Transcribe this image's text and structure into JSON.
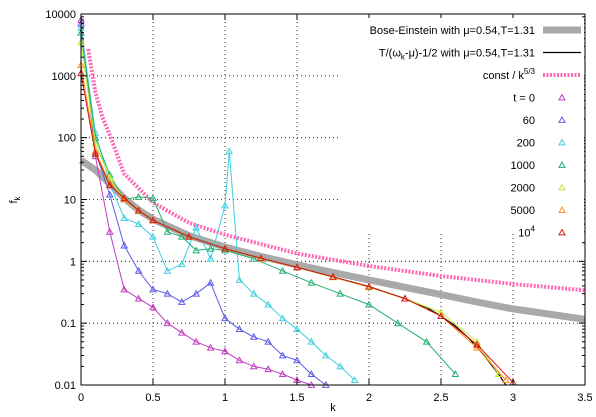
{
  "chart_data": {
    "type": "scatter",
    "title": "",
    "xlabel": "k",
    "ylabel": "f",
    "ylabel_sub": "k",
    "xlim": [
      0,
      3.5
    ],
    "ylim": [
      0.01,
      10000
    ],
    "yscale": "log",
    "grid": true,
    "legend_position": "top-right",
    "x_ticks": [
      "0",
      "0.5",
      "1",
      "1.5",
      "2",
      "2.5",
      "3",
      "3.5"
    ],
    "y_ticks": [
      "0.01",
      "0.1",
      "1",
      "10",
      "100",
      "1000",
      "10000"
    ],
    "reference_curves": [
      {
        "name": "Bose-Einstein with μ=0.54,T=1.31",
        "color": "#a9a9a9",
        "x": [
          0.0,
          0.1,
          0.2,
          0.3,
          0.4,
          0.5,
          0.75,
          1.0,
          1.25,
          1.5,
          1.75,
          2.0,
          2.25,
          2.5,
          2.75,
          3.0,
          3.25,
          3.5
        ],
        "y": [
          43,
          30,
          18,
          10.5,
          6.8,
          4.8,
          2.6,
          1.7,
          1.2,
          0.88,
          0.66,
          0.5,
          0.38,
          0.29,
          0.22,
          0.17,
          0.14,
          0.115
        ]
      },
      {
        "name": "T/(ω_k-μ)-1/2 with μ=0.54,T=1.31",
        "color": "#000000",
        "x": [
          0.3,
          0.4,
          0.5,
          0.75,
          1.0,
          1.25,
          1.5,
          1.75,
          2.0,
          2.25,
          2.4,
          2.5,
          2.6,
          2.7,
          2.8,
          2.9,
          2.95
        ],
        "y": [
          10.5,
          6.6,
          4.6,
          2.5,
          1.6,
          1.12,
          0.8,
          0.56,
          0.39,
          0.25,
          0.18,
          0.13,
          0.09,
          0.055,
          0.03,
          0.015,
          0.01
        ]
      },
      {
        "name": "const / k^5/3",
        "color": "#ff69b4",
        "x": [
          0.05,
          0.1,
          0.15,
          0.2,
          0.3,
          0.5,
          0.75,
          1.0,
          1.5,
          2.0,
          2.5,
          3.0,
          3.5
        ],
        "y": [
          2700,
          540,
          210,
          110,
          26,
          8.9,
          4.2,
          2.7,
          1.34,
          0.84,
          0.58,
          0.43,
          0.34
        ]
      }
    ],
    "series": [
      {
        "name": "t = 0",
        "color": "#c03cc0",
        "x": [
          0.0,
          0.1,
          0.2,
          0.3,
          0.4,
          0.5,
          0.6,
          0.7,
          0.8,
          0.9,
          1.0,
          1.1,
          1.2,
          1.3,
          1.4,
          1.5,
          1.6
        ],
        "y": [
          8000,
          50,
          3,
          0.35,
          0.25,
          0.18,
          0.1,
          0.07,
          0.05,
          0.04,
          0.035,
          0.025,
          0.02,
          0.018,
          0.015,
          0.012,
          0.01
        ]
      },
      {
        "name": "60",
        "color": "#5a5ae6",
        "x": [
          0.0,
          0.1,
          0.2,
          0.3,
          0.4,
          0.5,
          0.6,
          0.7,
          0.8,
          0.9,
          1.0,
          1.1,
          1.2,
          1.3,
          1.4,
          1.5,
          1.6,
          1.7
        ],
        "y": [
          7000,
          60,
          12,
          1.8,
          0.7,
          0.35,
          0.3,
          0.22,
          0.3,
          0.45,
          0.12,
          0.08,
          0.06,
          0.05,
          0.03,
          0.025,
          0.015,
          0.01
        ]
      },
      {
        "name": "200",
        "color": "#40d0e0",
        "x": [
          0.0,
          0.1,
          0.2,
          0.3,
          0.4,
          0.5,
          0.6,
          0.7,
          0.8,
          0.9,
          1.0,
          1.03,
          1.1,
          1.2,
          1.3,
          1.4,
          1.5,
          1.6,
          1.7,
          1.8,
          1.9
        ],
        "y": [
          6000,
          120,
          18,
          5,
          4,
          2.5,
          0.7,
          0.9,
          3.5,
          1.1,
          8,
          60,
          0.5,
          0.3,
          0.2,
          0.12,
          0.08,
          0.05,
          0.03,
          0.02,
          0.012
        ]
      },
      {
        "name": "1000",
        "color": "#20b070",
        "x": [
          0.0,
          0.1,
          0.2,
          0.3,
          0.4,
          0.5,
          0.6,
          0.7,
          0.8,
          0.9,
          1.0,
          1.2,
          1.4,
          1.6,
          1.8,
          2.0,
          2.2,
          2.4,
          2.6
        ],
        "y": [
          5000,
          100,
          25,
          10,
          11,
          10.5,
          3,
          2.5,
          1.5,
          1.6,
          1.5,
          1.1,
          0.7,
          0.45,
          0.3,
          0.2,
          0.1,
          0.05,
          0.015
        ]
      },
      {
        "name": "2000",
        "color": "#c8e832",
        "x": [
          0.0,
          0.1,
          0.2,
          0.3,
          0.4,
          0.5,
          0.75,
          1.0,
          1.25,
          1.5,
          1.75,
          2.0,
          2.25,
          2.5,
          2.75,
          2.9
        ],
        "y": [
          3500,
          80,
          22,
          10,
          6.5,
          4.6,
          2.5,
          1.6,
          1.1,
          0.8,
          0.55,
          0.38,
          0.25,
          0.15,
          0.05,
          0.015
        ]
      },
      {
        "name": "5000",
        "color": "#ff8c1a",
        "x": [
          0.0,
          0.1,
          0.2,
          0.3,
          0.4,
          0.5,
          0.75,
          1.0,
          1.25,
          1.5,
          1.75,
          2.0,
          2.25,
          2.5,
          2.75,
          2.95
        ],
        "y": [
          1500,
          60,
          18,
          10,
          6.6,
          4.6,
          2.5,
          1.6,
          1.12,
          0.8,
          0.56,
          0.39,
          0.25,
          0.13,
          0.04,
          0.012
        ]
      },
      {
        "name": "10^4",
        "color": "#d01818",
        "x": [
          0.0,
          0.1,
          0.2,
          0.3,
          0.4,
          0.5,
          0.75,
          1.0,
          1.25,
          1.5,
          1.75,
          2.0,
          2.25,
          2.5,
          2.75,
          3.0
        ],
        "y": [
          1100,
          55,
          17,
          10.5,
          6.6,
          4.6,
          2.5,
          1.6,
          1.12,
          0.8,
          0.56,
          0.39,
          0.25,
          0.13,
          0.045,
          0.011
        ]
      }
    ],
    "legend": [
      {
        "label": "Bose-Einstein with μ=0.54,T=1.31",
        "style": "thick-line",
        "color": "#a9a9a9"
      },
      {
        "label": "T/(ω_k-μ)-1/2 with μ=0.54,T=1.31",
        "style": "line",
        "color": "#000000"
      },
      {
        "label": "const / k^5/3",
        "style": "dashed",
        "color": "#ff69b4"
      },
      {
        "label": "t = 0",
        "style": "marker",
        "color": "#c03cc0"
      },
      {
        "label": "60",
        "style": "marker",
        "color": "#5a5ae6"
      },
      {
        "label": "200",
        "style": "marker",
        "color": "#40d0e0"
      },
      {
        "label": "1000",
        "style": "marker",
        "color": "#20b070"
      },
      {
        "label": "2000",
        "style": "marker",
        "color": "#c8e832"
      },
      {
        "label": "5000",
        "style": "marker",
        "color": "#ff8c1a"
      },
      {
        "label": "10^4",
        "style": "marker",
        "color": "#d01818"
      }
    ]
  }
}
